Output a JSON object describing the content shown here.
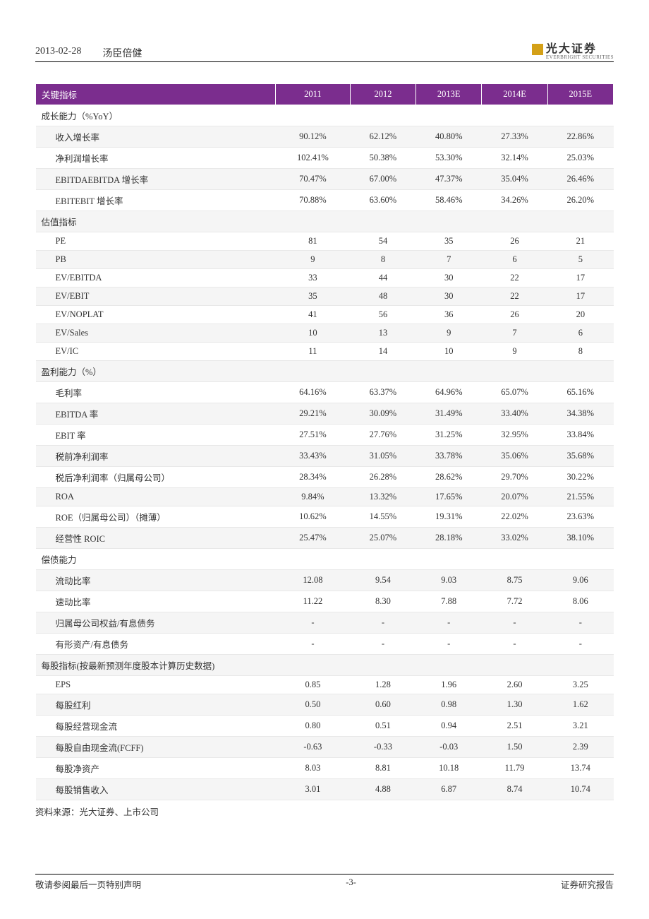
{
  "header": {
    "date": "2013-02-28",
    "company": "汤臣倍健",
    "logo_text": "光大证券",
    "logo_sub": "EVERBRIGHT SECURITIES"
  },
  "table": {
    "header_label": "关键指标",
    "columns": [
      "2011",
      "2012",
      "2013E",
      "2014E",
      "2015E"
    ],
    "sections": [
      {
        "title": "成长能力（%YoY）",
        "rows": [
          {
            "label": "收入增长率",
            "values": [
              "90.12%",
              "62.12%",
              "40.80%",
              "27.33%",
              "22.86%"
            ]
          },
          {
            "label": "净利润增长率",
            "values": [
              "102.41%",
              "50.38%",
              "53.30%",
              "32.14%",
              "25.03%"
            ]
          },
          {
            "label": "EBITDAEBITDA 增长率",
            "values": [
              "70.47%",
              "67.00%",
              "47.37%",
              "35.04%",
              "26.46%"
            ]
          },
          {
            "label": "EBITEBIT 增长率",
            "values": [
              "70.88%",
              "63.60%",
              "58.46%",
              "34.26%",
              "26.20%"
            ]
          }
        ]
      },
      {
        "title": "估值指标",
        "rows": [
          {
            "label": "PE",
            "values": [
              "81",
              "54",
              "35",
              "26",
              "21"
            ]
          },
          {
            "label": "PB",
            "values": [
              "9",
              "8",
              "7",
              "6",
              "5"
            ]
          },
          {
            "label": "EV/EBITDA",
            "values": [
              "33",
              "44",
              "30",
              "22",
              "17"
            ]
          },
          {
            "label": "EV/EBIT",
            "values": [
              "35",
              "48",
              "30",
              "22",
              "17"
            ]
          },
          {
            "label": "EV/NOPLAT",
            "values": [
              "41",
              "56",
              "36",
              "26",
              "20"
            ]
          },
          {
            "label": "EV/Sales",
            "values": [
              "10",
              "13",
              "9",
              "7",
              "6"
            ]
          },
          {
            "label": "EV/IC",
            "values": [
              "11",
              "14",
              "10",
              "9",
              "8"
            ]
          }
        ]
      },
      {
        "title": "盈利能力（%）",
        "rows": [
          {
            "label": "毛利率",
            "values": [
              "64.16%",
              "63.37%",
              "64.96%",
              "65.07%",
              "65.16%"
            ]
          },
          {
            "label": "EBITDA 率",
            "values": [
              "29.21%",
              "30.09%",
              "31.49%",
              "33.40%",
              "34.38%"
            ]
          },
          {
            "label": "EBIT 率",
            "values": [
              "27.51%",
              "27.76%",
              "31.25%",
              "32.95%",
              "33.84%"
            ]
          },
          {
            "label": "税前净利润率",
            "values": [
              "33.43%",
              "31.05%",
              "33.78%",
              "35.06%",
              "35.68%"
            ]
          },
          {
            "label": "税后净利润率（归属母公司）",
            "values": [
              "28.34%",
              "26.28%",
              "28.62%",
              "29.70%",
              "30.22%"
            ]
          },
          {
            "label": "ROA",
            "values": [
              "9.84%",
              "13.32%",
              "17.65%",
              "20.07%",
              "21.55%"
            ]
          },
          {
            "label": "ROE（归属母公司）（摊薄）",
            "values": [
              "10.62%",
              "14.55%",
              "19.31%",
              "22.02%",
              "23.63%"
            ]
          },
          {
            "label": "经营性 ROIC",
            "values": [
              "25.47%",
              "25.07%",
              "28.18%",
              "33.02%",
              "38.10%"
            ]
          }
        ]
      },
      {
        "title": "偿债能力",
        "rows": [
          {
            "label": "流动比率",
            "values": [
              "12.08",
              "9.54",
              "9.03",
              "8.75",
              "9.06"
            ]
          },
          {
            "label": "速动比率",
            "values": [
              "11.22",
              "8.30",
              "7.88",
              "7.72",
              "8.06"
            ]
          },
          {
            "label": "归属母公司权益/有息债务",
            "values": [
              "-",
              "-",
              "-",
              "-",
              "-"
            ]
          },
          {
            "label": "有形资产/有息债务",
            "values": [
              "-",
              "-",
              "-",
              "-",
              "-"
            ]
          }
        ]
      },
      {
        "title": "每股指标(按最新预测年度股本计算历史数据)",
        "rows": [
          {
            "label": "EPS",
            "values": [
              "0.85",
              "1.28",
              "1.96",
              "2.60",
              "3.25"
            ]
          },
          {
            "label": "每股红利",
            "values": [
              "0.50",
              "0.60",
              "0.98",
              "1.30",
              "1.62"
            ]
          },
          {
            "label": "每股经营现金流",
            "values": [
              "0.80",
              "0.51",
              "0.94",
              "2.51",
              "3.21"
            ]
          },
          {
            "label": "每股自由现金流(FCFF)",
            "values": [
              "-0.63",
              "-0.33",
              "-0.03",
              "1.50",
              "2.39"
            ]
          },
          {
            "label": "每股净资产",
            "values": [
              "8.03",
              "8.81",
              "10.18",
              "11.79",
              "13.74"
            ]
          },
          {
            "label": "每股销售收入",
            "values": [
              "3.01",
              "4.88",
              "6.87",
              "8.74",
              "10.74"
            ]
          }
        ]
      }
    ]
  },
  "source": "资料来源：光大证券、上市公司",
  "footer": {
    "left": "敬请参阅最后一页特别声明",
    "center": "-3-",
    "right": "证券研究报告"
  }
}
